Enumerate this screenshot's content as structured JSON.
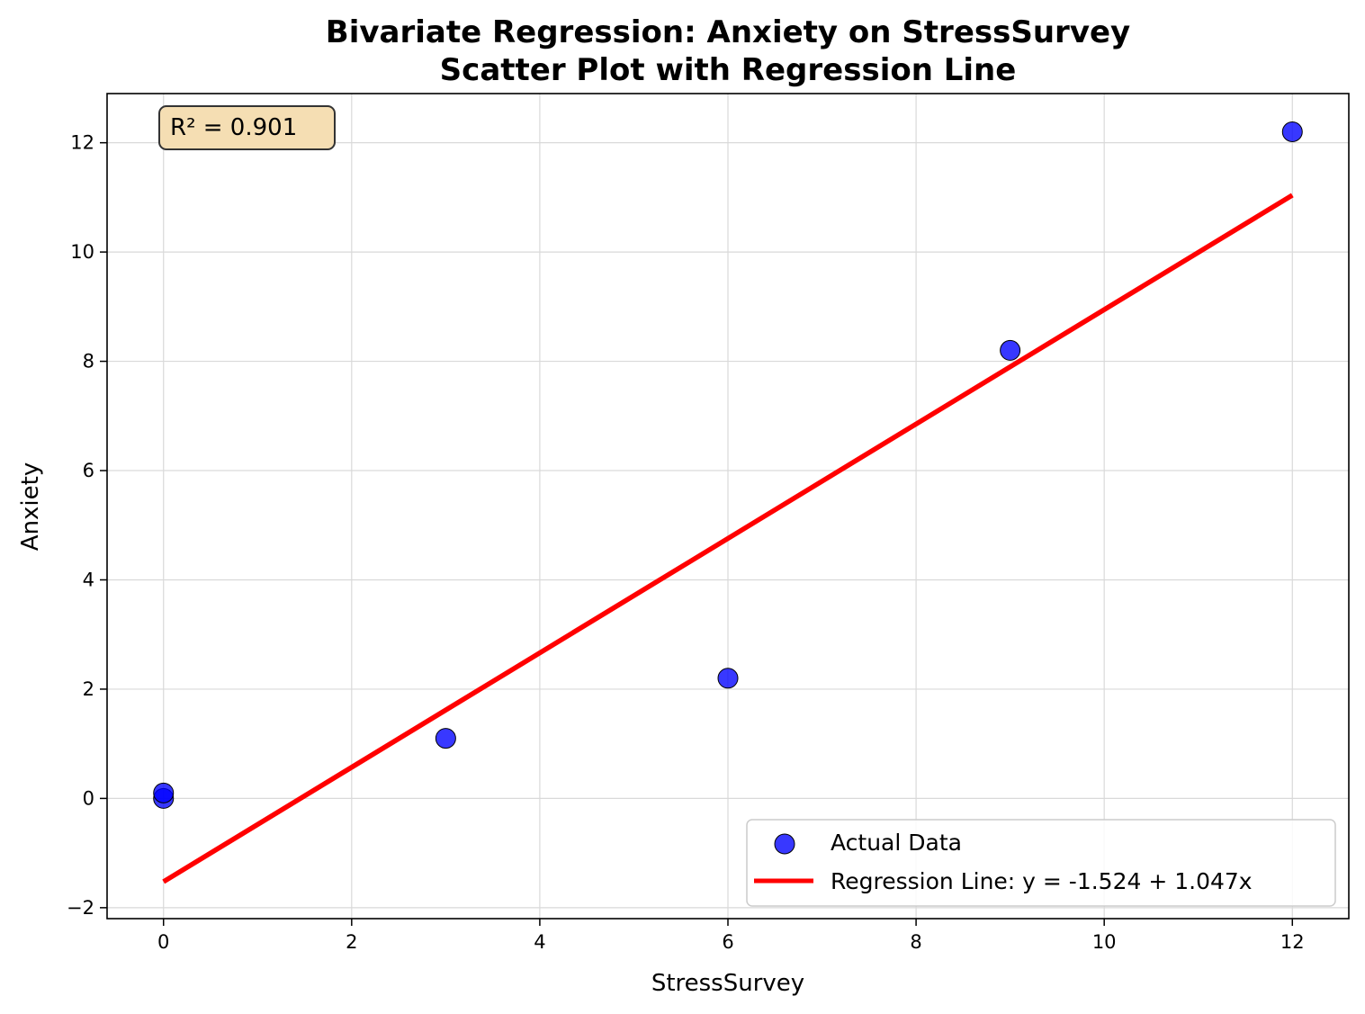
{
  "chart_data": {
    "type": "scatter",
    "title_line1": "Bivariate Regression: Anxiety on StressSurvey",
    "title_line2": "Scatter Plot with Regression Line",
    "xlabel": "StressSurvey",
    "ylabel": "Anxiety",
    "xlim": [
      -0.6,
      12.6
    ],
    "ylim": [
      -2.2,
      12.9
    ],
    "x_ticks": [
      0,
      2,
      4,
      6,
      8,
      10,
      12
    ],
    "y_ticks": [
      -2,
      0,
      2,
      4,
      6,
      8,
      10,
      12
    ],
    "x_tick_labels": [
      "0",
      "2",
      "4",
      "6",
      "8",
      "10",
      "12"
    ],
    "y_tick_labels": [
      "−2",
      "0",
      "2",
      "4",
      "6",
      "8",
      "10",
      "12"
    ],
    "grid": true,
    "series": [
      {
        "name": "Actual Data",
        "kind": "scatter",
        "color": "#0000ff",
        "points": [
          {
            "x": 0,
            "y": 0.0
          },
          {
            "x": 0,
            "y": 0.1
          },
          {
            "x": 3,
            "y": 1.1
          },
          {
            "x": 6,
            "y": 2.2
          },
          {
            "x": 9,
            "y": 8.2
          },
          {
            "x": 12,
            "y": 12.2
          }
        ]
      },
      {
        "name": "Regression Line: y = -1.524 + 1.047x",
        "kind": "line",
        "color": "#ff0000",
        "intercept": -1.524,
        "slope": 1.047,
        "x_range": [
          0,
          12
        ]
      }
    ],
    "annotation": {
      "text": "R² = 0.901",
      "position": "top-left",
      "background": "#f5deb3"
    },
    "legend": {
      "position": "bottom-right",
      "entries": [
        "Actual Data",
        "Regression Line: y = -1.524 + 1.047x"
      ]
    }
  }
}
